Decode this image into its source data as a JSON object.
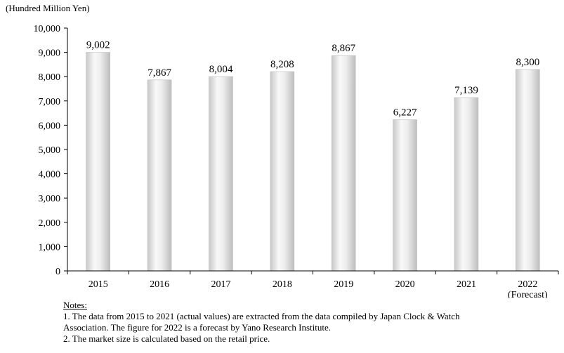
{
  "chart_data": {
    "type": "bar",
    "unit_label": "(Hundred Million  Yen)",
    "categories": [
      "2015",
      "2016",
      "2017",
      "2018",
      "2019",
      "2020",
      "2021",
      "2022"
    ],
    "category_sublabels": [
      "",
      "",
      "",
      "",
      "",
      "",
      "",
      "(Forecast)"
    ],
    "values": [
      9002,
      7867,
      8004,
      8208,
      8867,
      6227,
      7139,
      8300
    ],
    "value_labels": [
      "9,002",
      "7,867",
      "8,004",
      "8,208",
      "8,867",
      "6,227",
      "7,139",
      "8,300"
    ],
    "ylim": [
      0,
      10000
    ],
    "yticks": [
      0,
      1000,
      2000,
      3000,
      4000,
      5000,
      6000,
      7000,
      8000,
      9000,
      10000
    ],
    "ytick_labels": [
      "0",
      "1,000",
      "2,000",
      "3,000",
      "4,000",
      "5,000",
      "6,000",
      "7,000",
      "8,000",
      "9,000",
      "10,000"
    ],
    "grid": false,
    "legend": "none",
    "bar_color": "#d9d9d9"
  },
  "notes": {
    "title": "Notes:",
    "lines": [
      "1. The data from 2015 to 2021 (actual values) are extracted from the data compiled  by  Japan Clock & Watch",
      "Association.  The  figure  for 2022 is a forecast by Yano Research Institute.",
      "2. The market size is calculated based on the retail price."
    ]
  }
}
